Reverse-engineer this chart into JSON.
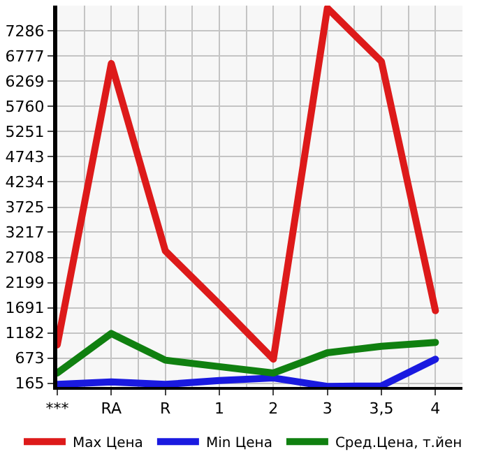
{
  "chart_data": {
    "type": "line",
    "categories": [
      "***",
      "RA",
      "R",
      "1",
      "2",
      "3",
      "3,5",
      "4"
    ],
    "series": [
      {
        "name": "Max Цена",
        "color": "#dd1a1a",
        "values": [
          940,
          6630,
          2840,
          1760,
          650,
          7750,
          6670,
          1630
        ]
      },
      {
        "name": "Min Цена",
        "color": "#1a1ae0",
        "values": [
          140,
          190,
          140,
          220,
          270,
          100,
          110,
          650
        ]
      },
      {
        "name": "Сред.Цена, т.йен",
        "color": "#108010",
        "values": [
          370,
          1170,
          630,
          500,
          370,
          780,
          910,
          990
        ]
      }
    ],
    "ylim": [
      88,
      7800
    ],
    "yticks": [
      165,
      673,
      1182,
      1691,
      2199,
      2708,
      3217,
      3725,
      4234,
      4743,
      5251,
      5760,
      6269,
      6777,
      7286
    ],
    "grid": true,
    "legend": "bottom",
    "marker": "none",
    "line_style": "solid"
  }
}
